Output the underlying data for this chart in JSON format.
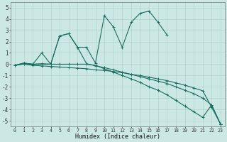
{
  "x": [
    0,
    1,
    2,
    3,
    4,
    5,
    6,
    7,
    8,
    9,
    10,
    11,
    12,
    13,
    14,
    15,
    16,
    17,
    18,
    19,
    20,
    21,
    22,
    23
  ],
  "line_peak": [
    -0.1,
    0.1,
    0.0,
    1.0,
    0.0,
    2.5,
    2.7,
    1.5,
    1.5,
    0.1,
    4.3,
    3.3,
    1.5,
    3.7,
    4.5,
    4.7,
    3.7,
    2.6,
    null,
    null,
    null,
    null,
    null,
    null
  ],
  "line_mid": [
    -0.1,
    0.1,
    0.0,
    0.05,
    0.0,
    2.5,
    2.7,
    1.5,
    0.05,
    -0.15,
    -0.3,
    -0.5,
    -0.7,
    -0.9,
    -1.1,
    -1.3,
    -1.5,
    -1.7,
    -2.0,
    -2.3,
    -2.6,
    -3.0,
    -3.6,
    -5.3
  ],
  "line_low": [
    -0.1,
    0.05,
    -0.05,
    0.0,
    0.0,
    0.0,
    0.0,
    0.0,
    0.0,
    -0.1,
    -0.4,
    -0.7,
    -1.0,
    -1.3,
    -1.6,
    -2.0,
    -2.3,
    -2.7,
    -3.2,
    -3.7,
    -4.2,
    -4.7,
    -3.6,
    -5.3
  ],
  "line_flat": [
    -0.1,
    0.0,
    -0.1,
    -0.15,
    -0.2,
    -0.25,
    -0.3,
    -0.35,
    -0.4,
    -0.5,
    -0.55,
    -0.65,
    -0.75,
    -0.9,
    -1.0,
    -1.15,
    -1.3,
    -1.45,
    -1.65,
    -1.85,
    -2.1,
    -2.35,
    -3.8,
    -5.3
  ],
  "bg_color": "#cce8e4",
  "grid_color": "#aed4cf",
  "line_color": "#1a6e60",
  "xlabel": "Humidex (Indice chaleur)",
  "ylim": [
    -5.5,
    5.5
  ],
  "xlim": [
    -0.5,
    23.5
  ],
  "yticks": [
    -5,
    -4,
    -3,
    -2,
    -1,
    0,
    1,
    2,
    3,
    4,
    5
  ],
  "xticks": [
    0,
    1,
    2,
    3,
    4,
    5,
    6,
    7,
    8,
    9,
    10,
    11,
    12,
    13,
    14,
    15,
    16,
    17,
    18,
    19,
    20,
    21,
    22,
    23
  ]
}
